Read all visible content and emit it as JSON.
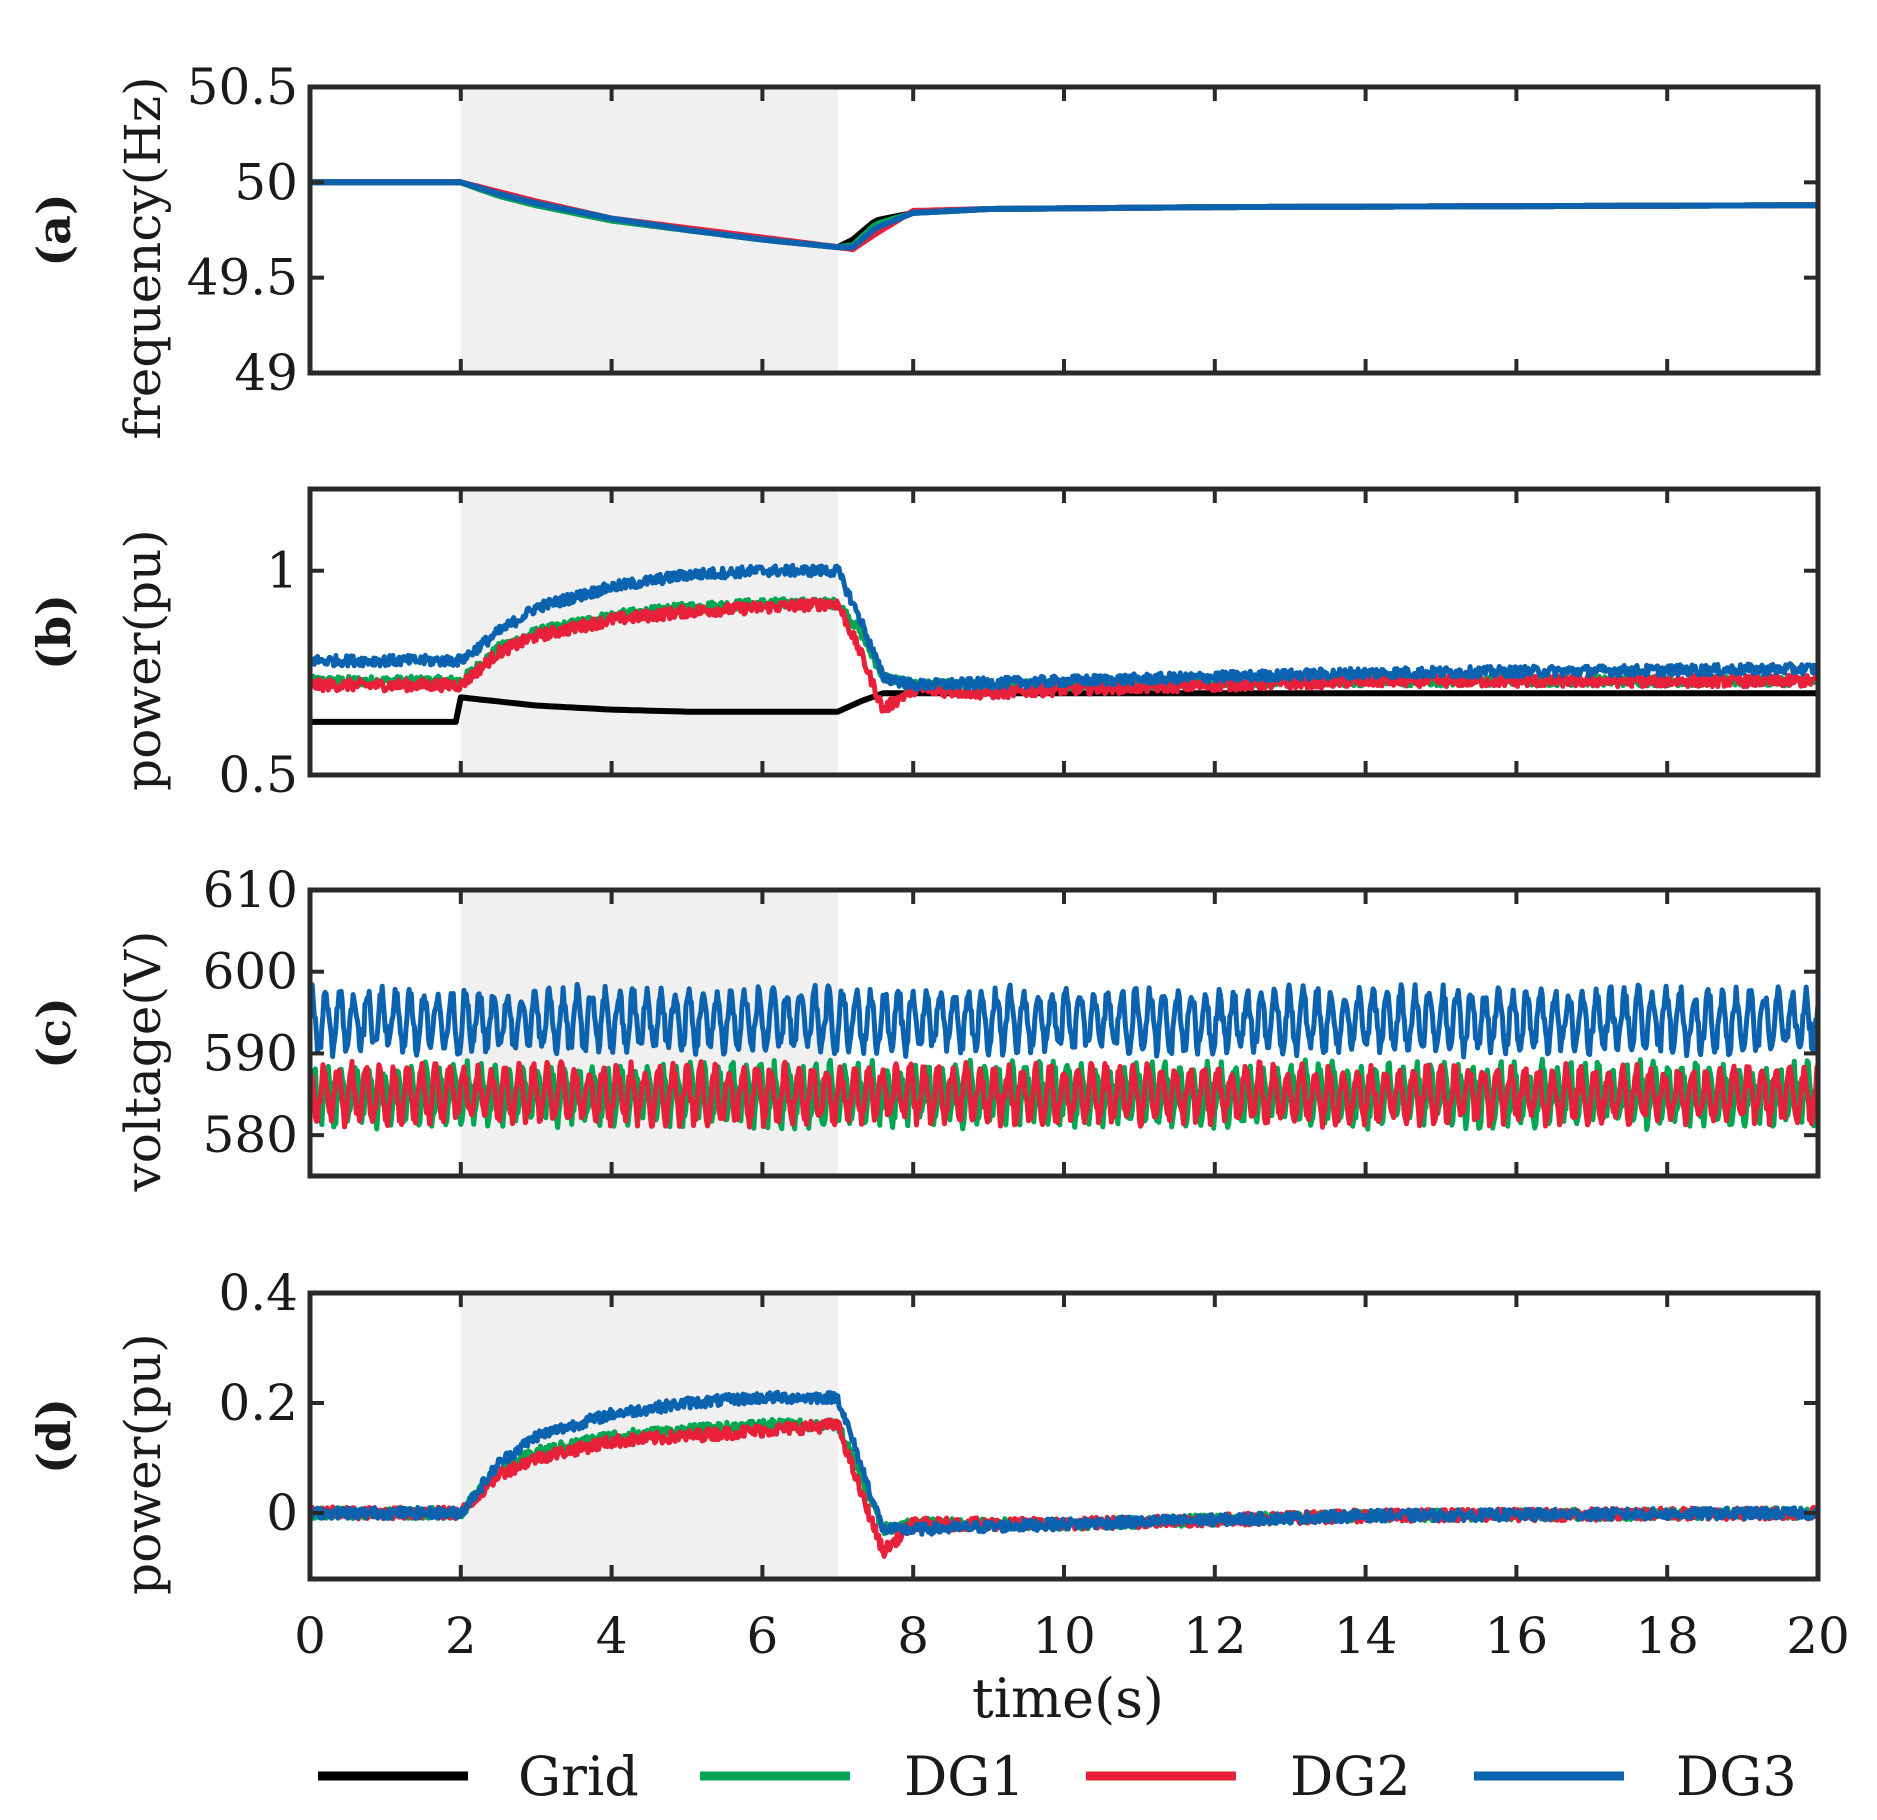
{
  "chart_data": {
    "type": "line",
    "xlabel": "time(s)",
    "xlim": [
      0,
      20
    ],
    "x_ticks": [
      "0",
      "2",
      "4",
      "6",
      "8",
      "10",
      "12",
      "14",
      "16",
      "18",
      "20"
    ],
    "shaded_interval": [
      2,
      7
    ],
    "legend": {
      "placement": "bottom",
      "entries": [
        {
          "name": "Grid",
          "color": "#000000"
        },
        {
          "name": "DG1",
          "color": "#00A651"
        },
        {
          "name": "DG2",
          "color": "#E8203A"
        },
        {
          "name": "DG3",
          "color": "#0B63B0"
        }
      ]
    },
    "panels": [
      {
        "id": "a",
        "letter": "(a)",
        "ylabel": "frequency(Hz)",
        "ylim": [
          49,
          50.5
        ],
        "y_ticks": [
          "49",
          "49.5",
          "50",
          "50.5"
        ],
        "series": [
          {
            "name": "DG1",
            "noise": 0,
            "x": [
              0,
              2,
              2.5,
              3,
              4,
              5,
              6,
              7,
              7.2,
              7.5,
              8,
              9,
              12,
              20
            ],
            "y": [
              50,
              50,
              49.93,
              49.88,
              49.8,
              49.75,
              49.7,
              49.66,
              49.67,
              49.78,
              49.84,
              49.86,
              49.87,
              49.88
            ]
          },
          {
            "name": "DG2",
            "noise": 0,
            "x": [
              0,
              2,
              2.5,
              3,
              4,
              5,
              6,
              7,
              7.2,
              7.5,
              8,
              9,
              12,
              20
            ],
            "y": [
              50,
              50,
              49.95,
              49.9,
              49.81,
              49.76,
              49.71,
              49.66,
              49.65,
              49.73,
              49.85,
              49.86,
              49.87,
              49.88
            ]
          },
          {
            "name": "DG3",
            "noise": 0,
            "x": [
              0,
              2,
              2.5,
              3,
              4,
              5,
              6,
              7,
              7.2,
              7.5,
              8,
              9,
              12,
              20
            ],
            "y": [
              50,
              50,
              49.94,
              49.89,
              49.81,
              49.75,
              49.7,
              49.66,
              49.66,
              49.76,
              49.84,
              49.86,
              49.87,
              49.88
            ]
          },
          {
            "name": "Grid",
            "noise": 0,
            "x": [
              0,
              2,
              2.5,
              3,
              4,
              5,
              6,
              7,
              7.2,
              7.5,
              8,
              9,
              12,
              20
            ],
            "y": [
              50,
              50,
              49.93,
              49.88,
              49.8,
              49.75,
              49.7,
              49.66,
              49.7,
              49.8,
              49.84,
              49.86,
              49.87,
              49.88
            ]
          }
        ]
      },
      {
        "id": "b",
        "letter": "(b)",
        "ylabel": "power(pu)",
        "ylim": [
          0.5,
          1.2
        ],
        "y_ticks": [
          "0.5",
          "1"
        ],
        "series": [
          {
            "name": "DG1",
            "noise": 0.012,
            "x": [
              0,
              2,
              2.5,
              3,
              4,
              5,
              6,
              7,
              7.3,
              7.6,
              8,
              10,
              14,
              20
            ],
            "y": [
              0.73,
              0.73,
              0.81,
              0.85,
              0.89,
              0.91,
              0.92,
              0.92,
              0.85,
              0.74,
              0.72,
              0.72,
              0.73,
              0.73
            ]
          },
          {
            "name": "DG2",
            "noise": 0.014,
            "x": [
              0,
              2,
              2.5,
              3,
              4,
              5,
              6,
              7,
              7.3,
              7.6,
              8,
              9,
              10,
              14,
              20
            ],
            "y": [
              0.72,
              0.72,
              0.8,
              0.84,
              0.88,
              0.9,
              0.91,
              0.92,
              0.8,
              0.66,
              0.71,
              0.7,
              0.71,
              0.73,
              0.73
            ]
          },
          {
            "name": "DG3",
            "noise": 0.013,
            "x": [
              0,
              2,
              2.5,
              3,
              4,
              5,
              6,
              7,
              7.3,
              7.6,
              8,
              10,
              14,
              20
            ],
            "y": [
              0.78,
              0.78,
              0.85,
              0.91,
              0.96,
              0.99,
              1.0,
              1.0,
              0.88,
              0.74,
              0.72,
              0.73,
              0.75,
              0.76
            ]
          },
          {
            "name": "Grid",
            "noise": 0,
            "x": [
              0,
              1.99,
              2,
              2.5,
              3,
              4,
              5,
              6,
              7,
              7.3,
              7.6,
              8,
              10,
              14,
              20
            ],
            "y": [
              0.63,
              0.63,
              0.69,
              0.68,
              0.67,
              0.66,
              0.655,
              0.655,
              0.655,
              0.68,
              0.7,
              0.7,
              0.7,
              0.7,
              0.7
            ]
          }
        ]
      },
      {
        "id": "c",
        "letter": "(c)",
        "ylabel": "voltage(V)",
        "ylim": [
          575,
          610
        ],
        "y_ticks": [
          "580",
          "590",
          "600",
          "610"
        ],
        "series": [
          {
            "name": "DG1",
            "noise": 3.2,
            "x": [
              0,
              20
            ],
            "y": [
              585,
              585
            ]
          },
          {
            "name": "DG2",
            "noise": 3.0,
            "x": [
              0,
              20
            ],
            "y": [
              585,
              585
            ]
          },
          {
            "name": "DG3",
            "noise": 3.3,
            "x": [
              0,
              20
            ],
            "y": [
              594,
              594
            ]
          }
        ]
      },
      {
        "id": "d",
        "letter": "(d)",
        "ylabel": "power(pu)",
        "ylim": [
          -0.12,
          0.4
        ],
        "y_ticks": [
          "0",
          "0.2",
          "0.4"
        ],
        "series": [
          {
            "name": "DG1",
            "noise": 0.01,
            "x": [
              0,
              2,
              2.5,
              3,
              4,
              5,
              6,
              7,
              7.3,
              7.6,
              8,
              10,
              14,
              20
            ],
            "y": [
              0.0,
              0.0,
              0.08,
              0.11,
              0.14,
              0.15,
              0.16,
              0.16,
              0.07,
              -0.03,
              -0.02,
              -0.02,
              -0.005,
              0.0
            ]
          },
          {
            "name": "DG2",
            "noise": 0.011,
            "x": [
              0,
              2,
              2.5,
              3,
              4,
              5,
              6,
              7,
              7.3,
              7.6,
              8,
              10,
              14,
              20
            ],
            "y": [
              0.0,
              0.0,
              0.07,
              0.1,
              0.13,
              0.14,
              0.15,
              0.16,
              0.04,
              -0.07,
              -0.02,
              -0.02,
              -0.005,
              0.0
            ]
          },
          {
            "name": "DG3",
            "noise": 0.01,
            "x": [
              0,
              2,
              2.5,
              3,
              4,
              5,
              6,
              7,
              7.3,
              7.6,
              8,
              10,
              14,
              20
            ],
            "y": [
              0.0,
              0.0,
              0.09,
              0.14,
              0.18,
              0.2,
              0.21,
              0.21,
              0.09,
              -0.03,
              -0.03,
              -0.02,
              -0.005,
              0.0
            ]
          }
        ]
      }
    ]
  }
}
